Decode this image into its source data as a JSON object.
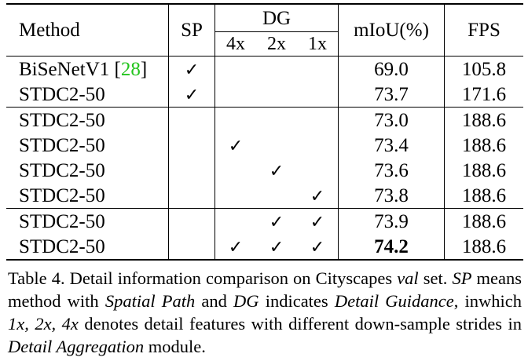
{
  "table": {
    "headers": {
      "method": "Method",
      "sp": "SP",
      "dg": "DG",
      "dg_sub": [
        "4x",
        "2x",
        "1x"
      ],
      "miou": "mIoU(%)",
      "fps": "FPS"
    },
    "check_mark": "✓",
    "rows": [
      {
        "method": "BiSeNetV1",
        "cite": "28",
        "sp": true,
        "dg4": false,
        "dg2": false,
        "dg1": false,
        "miou": "69.0",
        "fps": "105.8"
      },
      {
        "method": "STDC2-50",
        "sp": true,
        "dg4": false,
        "dg2": false,
        "dg1": false,
        "miou": "73.7",
        "fps": "171.6"
      },
      {
        "method": "STDC2-50",
        "sp": false,
        "dg4": false,
        "dg2": false,
        "dg1": false,
        "miou": "73.0",
        "fps": "188.6"
      },
      {
        "method": "STDC2-50",
        "sp": false,
        "dg4": true,
        "dg2": false,
        "dg1": false,
        "miou": "73.4",
        "fps": "188.6"
      },
      {
        "method": "STDC2-50",
        "sp": false,
        "dg4": false,
        "dg2": true,
        "dg1": false,
        "miou": "73.6",
        "fps": "188.6"
      },
      {
        "method": "STDC2-50",
        "sp": false,
        "dg4": false,
        "dg2": false,
        "dg1": true,
        "miou": "73.8",
        "fps": "188.6"
      },
      {
        "method": "STDC2-50",
        "sp": false,
        "dg4": false,
        "dg2": true,
        "dg1": true,
        "miou": "73.9",
        "fps": "188.6"
      },
      {
        "method": "STDC2-50",
        "sp": false,
        "dg4": true,
        "dg2": true,
        "dg1": true,
        "miou": "74.2",
        "fps": "188.6",
        "miou_bold": true
      }
    ]
  },
  "caption": {
    "t1": "Table 4. Detail information comparison on Cityscapes ",
    "i1": "val",
    "t2": " set. ",
    "i2": "SP",
    "t3": " means method with ",
    "i3": "Spatial Path",
    "t4": " and ",
    "i4": "DG",
    "t5": " indicates ",
    "i5": "Detail Guidance",
    "t6": ", inwhich ",
    "i6": "1x, 2x, 4x",
    "t7": " denotes detail features with different down-sample strides in ",
    "i7": "Detail Aggregation",
    "t8": " module."
  }
}
